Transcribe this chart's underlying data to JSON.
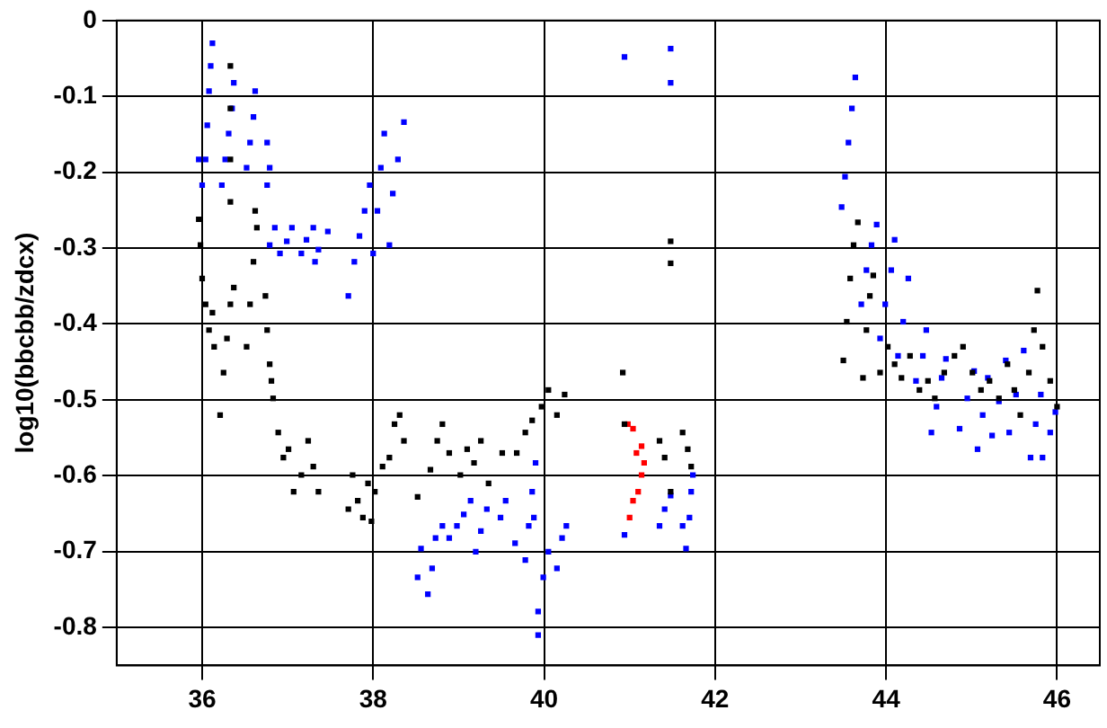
{
  "chart_data": {
    "type": "scatter",
    "ylabel": "log10(bbcbb/zdcx)",
    "xlim": [
      35,
      46.5
    ],
    "ylim": [
      -0.85,
      0
    ],
    "xticks": [
      36,
      38,
      40,
      42,
      44,
      46
    ],
    "yticks": [
      0,
      -0.1,
      -0.2,
      -0.3,
      -0.4,
      -0.5,
      -0.6,
      -0.7,
      -0.8
    ],
    "grid": true,
    "marker": "square",
    "series": [
      {
        "color": "#000000",
        "x": [
          35.96,
          35.98,
          36.0,
          36.04,
          36.08,
          36.12,
          36.14,
          36.21,
          36.25,
          36.29,
          36.33,
          36.37,
          36.33,
          36.33,
          36.33,
          36.33,
          36.52,
          36.56,
          36.6,
          36.64,
          36.62,
          36.74,
          36.76,
          36.79,
          36.81,
          36.83,
          36.89,
          36.95,
          37.01,
          37.07,
          37.16,
          37.24,
          37.3,
          37.36,
          37.71,
          37.76,
          37.82,
          37.88,
          37.94,
          37.98,
          38.02,
          38.11,
          38.19,
          38.25,
          38.31,
          38.36,
          38.52,
          38.67,
          38.75,
          38.81,
          38.89,
          39.02,
          39.1,
          39.18,
          39.26,
          39.35,
          39.51,
          39.68,
          39.78,
          39.86,
          39.97,
          40.05,
          40.15,
          40.24,
          40.92,
          40.94,
          41.35,
          41.41,
          41.48,
          41.62,
          41.68,
          41.72,
          41.48,
          41.48,
          43.5,
          43.54,
          43.58,
          43.62,
          43.67,
          43.73,
          43.77,
          43.81,
          43.85,
          43.93,
          44.02,
          44.1,
          44.18,
          44.28,
          44.39,
          44.49,
          44.57,
          44.68,
          44.8,
          44.9,
          45.01,
          45.11,
          45.21,
          45.32,
          45.42,
          45.5,
          45.57,
          45.67,
          45.73,
          45.77,
          45.83,
          45.92,
          46.0
        ],
        "values": [
          -0.262,
          -0.296,
          -0.34,
          -0.374,
          -0.408,
          -0.385,
          -0.43,
          -0.52,
          -0.464,
          -0.419,
          -0.374,
          -0.352,
          -0.06,
          -0.116,
          -0.183,
          -0.239,
          -0.43,
          -0.374,
          -0.318,
          -0.273,
          -0.251,
          -0.363,
          -0.408,
          -0.453,
          -0.475,
          -0.498,
          -0.543,
          -0.576,
          -0.565,
          -0.621,
          -0.599,
          -0.554,
          -0.588,
          -0.621,
          -0.644,
          -0.599,
          -0.633,
          -0.655,
          -0.61,
          -0.66,
          -0.621,
          -0.588,
          -0.576,
          -0.532,
          -0.52,
          -0.554,
          -0.628,
          -0.592,
          -0.554,
          -0.532,
          -0.57,
          -0.599,
          -0.565,
          -0.583,
          -0.554,
          -0.61,
          -0.57,
          -0.57,
          -0.543,
          -0.527,
          -0.509,
          -0.487,
          -0.52,
          -0.493,
          -0.464,
          -0.532,
          -0.554,
          -0.576,
          -0.621,
          -0.543,
          -0.565,
          -0.588,
          -0.291,
          -0.32,
          -0.448,
          -0.397,
          -0.34,
          -0.296,
          -0.266,
          -0.471,
          -0.408,
          -0.363,
          -0.336,
          -0.464,
          -0.43,
          -0.453,
          -0.471,
          -0.442,
          -0.487,
          -0.475,
          -0.498,
          -0.464,
          -0.442,
          -0.43,
          -0.464,
          -0.487,
          -0.475,
          -0.498,
          -0.453,
          -0.487,
          -0.52,
          -0.464,
          -0.408,
          -0.356,
          -0.43,
          -0.475,
          -0.509
        ]
      },
      {
        "color": "#0000ff",
        "x": [
          35.96,
          36.0,
          36.04,
          36.06,
          36.08,
          36.1,
          36.12,
          36.23,
          36.27,
          36.31,
          36.35,
          36.37,
          36.52,
          36.56,
          36.6,
          36.62,
          36.76,
          36.79,
          36.76,
          36.79,
          36.85,
          36.91,
          36.99,
          37.05,
          37.16,
          37.22,
          37.3,
          37.36,
          37.47,
          37.32,
          37.71,
          37.78,
          37.84,
          37.9,
          37.96,
          38.0,
          38.05,
          38.09,
          38.13,
          38.19,
          38.23,
          38.29,
          38.36,
          38.52,
          38.56,
          38.64,
          38.69,
          38.73,
          38.81,
          38.89,
          38.98,
          39.06,
          39.14,
          39.2,
          39.26,
          39.33,
          39.49,
          39.55,
          39.66,
          39.78,
          39.82,
          39.86,
          39.9,
          39.88,
          39.99,
          40.05,
          40.15,
          40.21,
          40.26,
          39.93,
          39.93,
          40.94,
          41.35,
          41.41,
          41.48,
          41.62,
          41.66,
          41.7,
          41.72,
          41.74,
          40.94,
          41.48,
          41.48,
          43.48,
          43.52,
          43.56,
          43.6,
          43.64,
          43.71,
          43.77,
          43.83,
          43.89,
          43.93,
          43.99,
          44.06,
          44.1,
          44.14,
          44.2,
          44.26,
          44.35,
          44.43,
          44.47,
          44.53,
          44.59,
          44.65,
          44.7,
          44.86,
          44.95,
          45.03,
          45.07,
          45.13,
          45.19,
          45.24,
          45.32,
          45.4,
          45.44,
          45.52,
          45.61,
          45.69,
          45.75,
          45.81,
          45.83,
          45.92,
          45.98
        ],
        "values": [
          -0.183,
          -0.217,
          -0.183,
          -0.138,
          -0.093,
          -0.06,
          -0.03,
          -0.217,
          -0.183,
          -0.149,
          -0.116,
          -0.082,
          -0.194,
          -0.161,
          -0.127,
          -0.093,
          -0.161,
          -0.194,
          -0.217,
          -0.296,
          -0.273,
          -0.307,
          -0.291,
          -0.273,
          -0.307,
          -0.289,
          -0.273,
          -0.302,
          -0.278,
          -0.318,
          -0.363,
          -0.318,
          -0.284,
          -0.251,
          -0.217,
          -0.307,
          -0.251,
          -0.194,
          -0.149,
          -0.296,
          -0.228,
          -0.183,
          -0.134,
          -0.734,
          -0.696,
          -0.756,
          -0.722,
          -0.682,
          -0.666,
          -0.682,
          -0.666,
          -0.651,
          -0.633,
          -0.7,
          -0.673,
          -0.644,
          -0.655,
          -0.633,
          -0.689,
          -0.711,
          -0.666,
          -0.621,
          -0.583,
          -0.655,
          -0.734,
          -0.7,
          -0.722,
          -0.682,
          -0.666,
          -0.779,
          -0.81,
          -0.678,
          -0.666,
          -0.644,
          -0.626,
          -0.666,
          -0.696,
          -0.655,
          -0.621,
          -0.599,
          -0.048,
          -0.037,
          -0.082,
          -0.246,
          -0.206,
          -0.161,
          -0.116,
          -0.075,
          -0.374,
          -0.329,
          -0.296,
          -0.269,
          -0.419,
          -0.374,
          -0.329,
          -0.289,
          -0.442,
          -0.397,
          -0.34,
          -0.475,
          -0.442,
          -0.408,
          -0.543,
          -0.509,
          -0.471,
          -0.446,
          -0.538,
          -0.498,
          -0.462,
          -0.565,
          -0.52,
          -0.471,
          -0.547,
          -0.502,
          -0.448,
          -0.543,
          -0.493,
          -0.435,
          -0.576,
          -0.532,
          -0.493,
          -0.576,
          -0.543,
          -0.516
        ]
      },
      {
        "color": "#ff0000",
        "x": [
          40.98,
          41.04,
          41.08,
          41.14,
          41.0,
          41.04,
          41.1,
          41.14,
          41.17
        ],
        "values": [
          -0.532,
          -0.538,
          -0.57,
          -0.561,
          -0.655,
          -0.633,
          -0.621,
          -0.599,
          -0.583
        ]
      }
    ]
  }
}
